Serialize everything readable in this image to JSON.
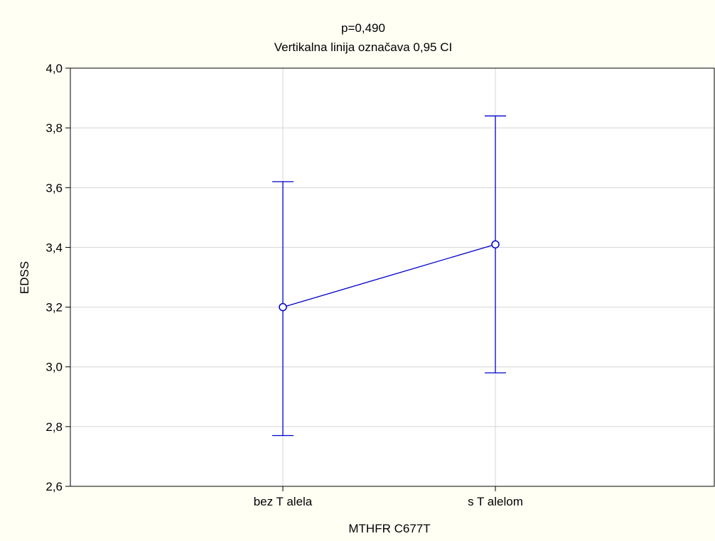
{
  "chart_data": {
    "type": "line",
    "title": "p=0,490",
    "subtitle": "Vertikalna linija označava 0,95 CI",
    "xlabel": "MTHFR C677T",
    "ylabel": "EDSS",
    "categories": [
      "bez T alela",
      "s T alelom"
    ],
    "series": [
      {
        "values": [
          3.2,
          3.41
        ],
        "ci_lower": [
          2.77,
          2.98
        ],
        "ci_upper": [
          3.62,
          3.84
        ]
      }
    ],
    "ylim": [
      2.6,
      4.0
    ],
    "yticks": [
      2.6,
      2.8,
      3.0,
      3.2,
      3.4,
      3.6,
      3.8,
      4.0
    ],
    "ytick_labels": [
      "2,6",
      "2,8",
      "3,0",
      "3,2",
      "3,4",
      "3,6",
      "3,8",
      "4,0"
    ],
    "grid": true,
    "colors": {
      "series": "#0000cc",
      "grid": "#d4d4d4",
      "plot_background": "#ffffff",
      "figure_background": "#fffff4"
    }
  }
}
